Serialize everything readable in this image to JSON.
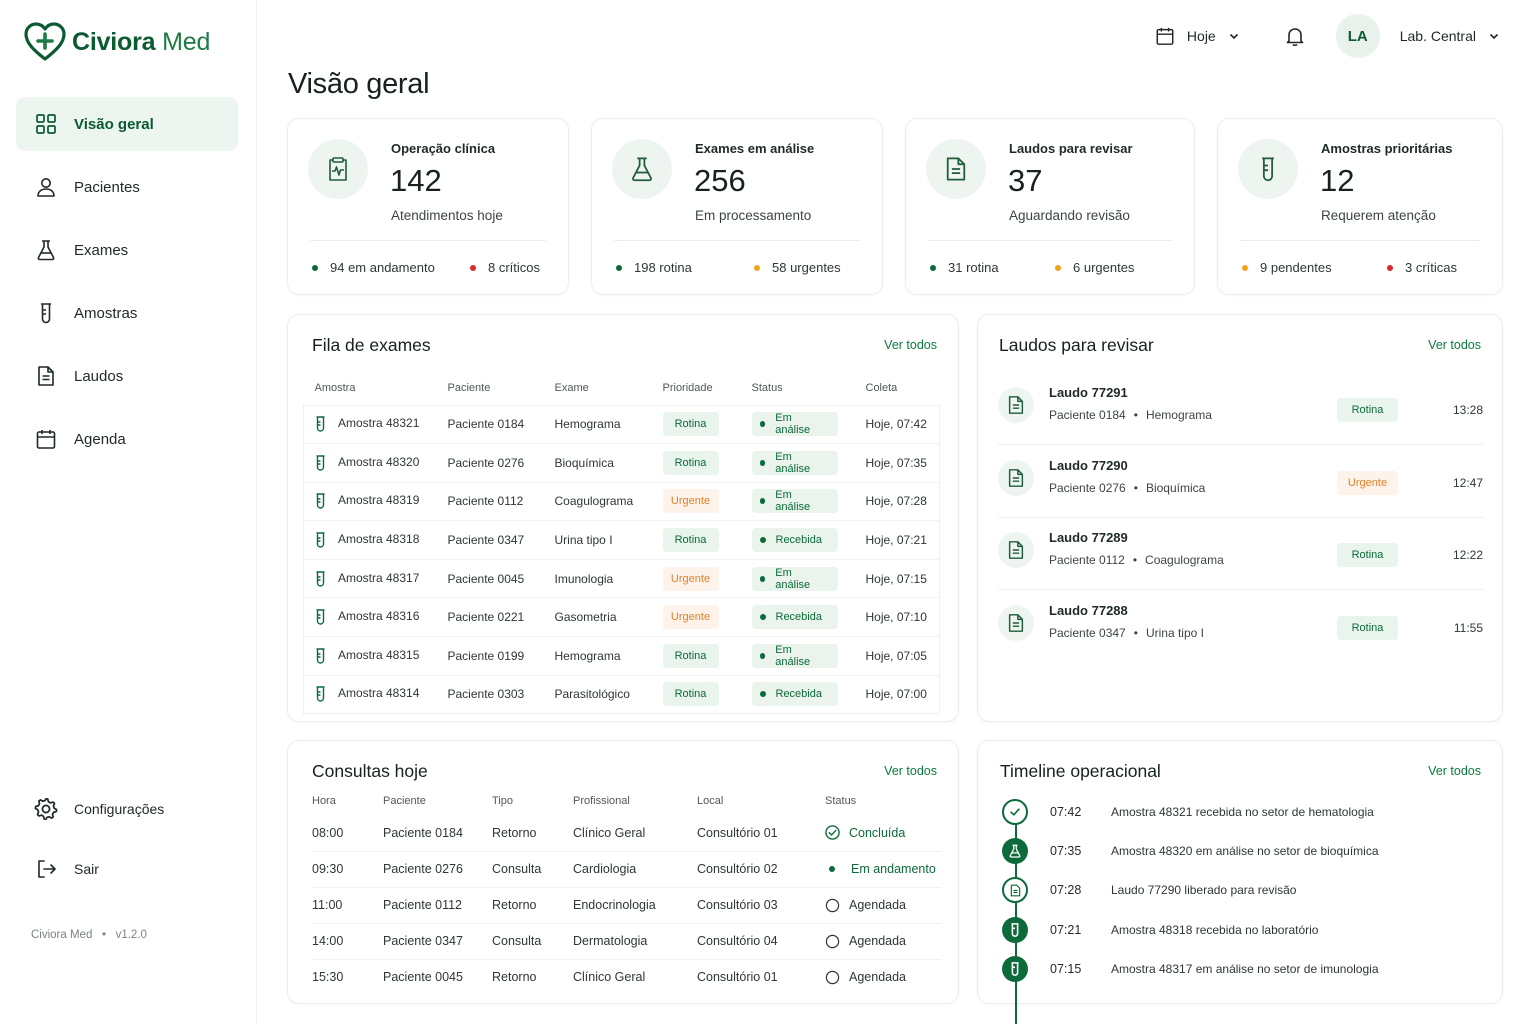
{
  "app": {
    "brand_bold": "Civiora",
    "brand_light": "Med",
    "version_name": "Civiora Med",
    "version_sep": "•",
    "version": "v1.2.0"
  },
  "sidebar": {
    "items": [
      {
        "label": "Visão geral",
        "icon": "grid-icon",
        "active": true
      },
      {
        "label": "Pacientes",
        "icon": "user-icon"
      },
      {
        "label": "Exames",
        "icon": "flask-icon"
      },
      {
        "label": "Amostras",
        "icon": "test-tube-icon"
      },
      {
        "label": "Laudos",
        "icon": "document-icon"
      },
      {
        "label": "Agenda",
        "icon": "calendar-icon"
      }
    ],
    "bottom": [
      {
        "label": "Configurações",
        "icon": "gear-icon"
      },
      {
        "label": "Sair",
        "icon": "logout-icon"
      }
    ]
  },
  "topbar": {
    "date_label": "Hoje",
    "avatar_initials": "LA",
    "lab_label": "Lab. Central"
  },
  "page_title": "Visão geral",
  "kpis": [
    {
      "title": "Operação clínica",
      "value": "142",
      "subtitle": "Atendimentos hoje",
      "f1": "94 em andamento",
      "f1_color": "green",
      "f2": "8 críticos",
      "f2_color": "red",
      "icon": "clipboard-pulse-icon"
    },
    {
      "title": "Exames em análise",
      "value": "256",
      "subtitle": "Em processamento",
      "f1": "198 rotina",
      "f1_color": "green",
      "f2": "58 urgentes",
      "f2_color": "orange",
      "icon": "flask-icon"
    },
    {
      "title": "Laudos para revisar",
      "value": "37",
      "subtitle": "Aguardando revisão",
      "f1": "31 rotina",
      "f1_color": "green",
      "f2": "6 urgentes",
      "f2_color": "orange",
      "icon": "document-icon"
    },
    {
      "title": "Amostras prioritárias",
      "value": "12",
      "subtitle": "Requerem atenção",
      "f1": "9 pendentes",
      "f1_color": "orange",
      "f2": "3 críticas",
      "f2_color": "red",
      "icon": "test-tube-icon"
    }
  ],
  "fila": {
    "title": "Fila de exames",
    "ver_todos": "Ver todos",
    "headers": [
      "Amostra",
      "Paciente",
      "Exame",
      "Prioridade",
      "Status",
      "Coleta"
    ],
    "rows": [
      {
        "amostra": "Amostra 48321",
        "paciente": "Paciente 0184",
        "exame": "Hemograma",
        "prioridade": "Rotina",
        "status": "Em análise",
        "coleta": "Hoje, 07:42"
      },
      {
        "amostra": "Amostra 48320",
        "paciente": "Paciente 0276",
        "exame": "Bioquímica",
        "prioridade": "Rotina",
        "status": "Em análise",
        "coleta": "Hoje, 07:35"
      },
      {
        "amostra": "Amostra 48319",
        "paciente": "Paciente 0112",
        "exame": "Coagulograma",
        "prioridade": "Urgente",
        "status": "Em análise",
        "coleta": "Hoje, 07:28"
      },
      {
        "amostra": "Amostra 48318",
        "paciente": "Paciente 0347",
        "exame": "Urina tipo I",
        "prioridade": "Rotina",
        "status": "Recebida",
        "coleta": "Hoje, 07:21"
      },
      {
        "amostra": "Amostra 48317",
        "paciente": "Paciente 0045",
        "exame": "Imunologia",
        "prioridade": "Urgente",
        "status": "Em análise",
        "coleta": "Hoje, 07:15"
      },
      {
        "amostra": "Amostra 48316",
        "paciente": "Paciente 0221",
        "exame": "Gasometria",
        "prioridade": "Urgente",
        "status": "Recebida",
        "coleta": "Hoje, 07:10"
      },
      {
        "amostra": "Amostra 48315",
        "paciente": "Paciente 0199",
        "exame": "Hemograma",
        "prioridade": "Rotina",
        "status": "Em análise",
        "coleta": "Hoje, 07:05"
      },
      {
        "amostra": "Amostra 48314",
        "paciente": "Paciente 0303",
        "exame": "Parasitológico",
        "prioridade": "Rotina",
        "status": "Recebida",
        "coleta": "Hoje, 07:00"
      }
    ]
  },
  "laudos": {
    "title": "Laudos para revisar",
    "ver_todos": "Ver todos",
    "items": [
      {
        "name": "Laudo 77291",
        "paciente": "Paciente 0184",
        "exame": "Hemograma",
        "prioridade": "Rotina",
        "time": "13:28"
      },
      {
        "name": "Laudo 77290",
        "paciente": "Paciente 0276",
        "exame": "Bioquímica",
        "prioridade": "Urgente",
        "time": "12:47"
      },
      {
        "name": "Laudo 77289",
        "paciente": "Paciente 0112",
        "exame": "Coagulograma",
        "prioridade": "Rotina",
        "time": "12:22"
      },
      {
        "name": "Laudo 77288",
        "paciente": "Paciente 0347",
        "exame": "Urina tipo I",
        "prioridade": "Rotina",
        "time": "11:55"
      }
    ],
    "sep": "•"
  },
  "consultas": {
    "title": "Consultas hoje",
    "ver_todos": "Ver todos",
    "headers": [
      "Hora",
      "Paciente",
      "Tipo",
      "Profissional",
      "Local",
      "Status"
    ],
    "rows": [
      {
        "hora": "08:00",
        "paciente": "Paciente 0184",
        "tipo": "Retorno",
        "profissional": "Clínico Geral",
        "local": "Consultório 01",
        "status": "Concluída",
        "kind": "ok"
      },
      {
        "hora": "09:30",
        "paciente": "Paciente 0276",
        "tipo": "Consulta",
        "profissional": "Cardiologia",
        "local": "Consultório 02",
        "status": "Em andamento",
        "kind": "and"
      },
      {
        "hora": "11:00",
        "paciente": "Paciente 0112",
        "tipo": "Retorno",
        "profissional": "Endocrinologia",
        "local": "Consultório 03",
        "status": "Agendada",
        "kind": "ag"
      },
      {
        "hora": "14:00",
        "paciente": "Paciente 0347",
        "tipo": "Consulta",
        "profissional": "Dermatologia",
        "local": "Consultório 04",
        "status": "Agendada",
        "kind": "ag"
      },
      {
        "hora": "15:30",
        "paciente": "Paciente 0045",
        "tipo": "Retorno",
        "profissional": "Clínico Geral",
        "local": "Consultório 01",
        "status": "Agendada",
        "kind": "ag"
      }
    ]
  },
  "timeline": {
    "title": "Timeline operacional",
    "ver_todos": "Ver todos",
    "items": [
      {
        "time": "07:42",
        "text": "Amostra 48321 recebida no setor de hematologia",
        "icon": "check-circle-icon",
        "style": "outline"
      },
      {
        "time": "07:35",
        "text": "Amostra 48320 em análise no setor de bioquímica",
        "icon": "flask-icon",
        "style": "filled"
      },
      {
        "time": "07:28",
        "text": "Laudo 77290 liberado para revisão",
        "icon": "document-icon",
        "style": "outline"
      },
      {
        "time": "07:21",
        "text": "Amostra 48318 recebida no laboratório",
        "icon": "test-tube-icon",
        "style": "filled"
      },
      {
        "time": "07:15",
        "text": "Amostra 48317 em análise no setor de imunologia",
        "icon": "test-tube-icon",
        "style": "filled"
      }
    ]
  },
  "colors": {
    "brand": "#0b5a32",
    "accent": "#0d6b3b",
    "urgent": "#e0822a",
    "critical": "#d92b2b",
    "pending": "#f2a11a"
  }
}
